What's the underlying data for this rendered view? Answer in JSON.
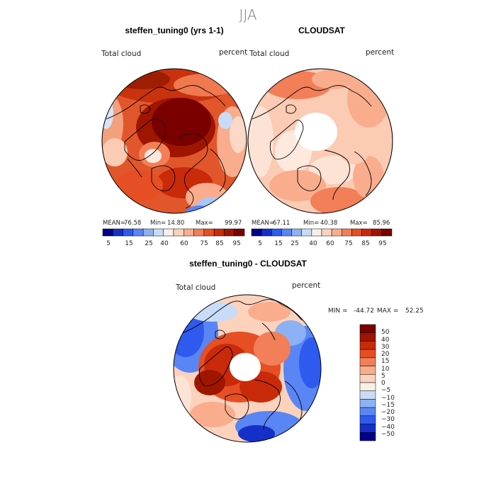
{
  "season": "JJA",
  "colors": {
    "absolute_palette": [
      "#00008b",
      "#1530c8",
      "#2e5af0",
      "#5a86f5",
      "#8cb2f5",
      "#c8dcf8",
      "#f7efe8",
      "#fcd2bd",
      "#f9ad8c",
      "#f27f58",
      "#e64e24",
      "#c82a0a",
      "#9e1600",
      "#7a0000"
    ],
    "diff_palette": [
      "#00008b",
      "#1530c8",
      "#2e5af0",
      "#5a86f5",
      "#8cb2f5",
      "#c8dcf8",
      "#f7efe8",
      "#fcd2bd",
      "#f9ad8c",
      "#f27f58",
      "#e64e24",
      "#c82a0a",
      "#9e1600",
      "#7a0000"
    ]
  },
  "chart_data": [
    {
      "type": "heatmap",
      "projection": "north polar stereographic",
      "title": "steffen_tuning0 (yrs 1-1)",
      "variable_label": "Total cloud",
      "units_label": "percent",
      "stats": {
        "mean_label": "MEAN=",
        "mean": "76.58",
        "min_label": "Min=",
        "min": "14.80",
        "max_label": "Max=",
        "max": "99.97"
      },
      "colorbar_ticks": [
        "5",
        "15",
        "25",
        "40",
        "60",
        "75",
        "85",
        "95"
      ],
      "colorbar_levels": 14,
      "pattern": "Very cloudy over Arctic Ocean (95-100%), 60-85% over land, lower (20-50%) over Greenland and southern North Atlantic"
    },
    {
      "type": "heatmap",
      "projection": "north polar stereographic",
      "title": "CLOUDSAT",
      "variable_label": "Total cloud",
      "units_label": "percent",
      "stats": {
        "mean_label": "MEAN=",
        "mean": "67.11",
        "min_label": "Min=",
        "min": "40.38",
        "max_label": "Max=",
        "max": "85.96"
      },
      "colorbar_ticks": [
        "5",
        "15",
        "25",
        "40",
        "60",
        "75",
        "85",
        "95"
      ],
      "colorbar_levels": 14,
      "missing_region": "polar data gap north of ~82N",
      "pattern": "Moderate cloud (55-85%), mostly 60-75%"
    },
    {
      "type": "heatmap",
      "projection": "north polar stereographic",
      "title": "steffen_tuning0 - CLOUDSAT",
      "variable_label": "Total cloud",
      "units_label": "percent",
      "range_text": {
        "min_label": "MIN =",
        "min": "-44.72",
        "max_label": "MAX =",
        "max": "52.25"
      },
      "colorbar_labels": [
        "50",
        "40",
        "30",
        "20",
        "15",
        "10",
        "5",
        "0",
        "−5",
        "−10",
        "−15",
        "−20",
        "−30",
        "−40",
        "−50"
      ],
      "missing_region": "polar data gap north of ~82N",
      "pattern": "Positive bias (+20 to +50) over Arctic Ocean, negative bias (-20 to -45) over North Atlantic and North Pacific"
    }
  ]
}
